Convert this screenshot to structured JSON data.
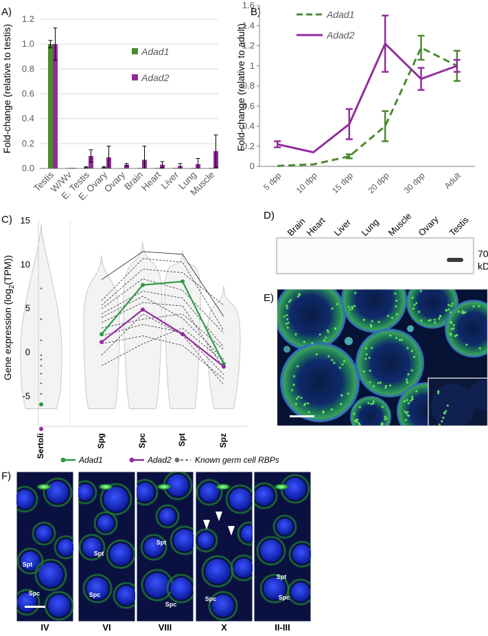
{
  "figure": {
    "panels": {
      "a": "A)",
      "b": "B)",
      "c": "C)",
      "d": "D)",
      "e": "E)",
      "f": "F)"
    }
  },
  "colors": {
    "adad1": "#4a8a2e",
    "adad2": "#922b9c",
    "adad1_violin": "#2e9a46",
    "axis": "#7f7f7f",
    "tick_text": "#595959",
    "rbp": "#707070"
  },
  "chart_data": [
    {
      "id": "A",
      "type": "bar",
      "title": "",
      "ylabel": "Fold-change (relative to testis)",
      "ylim": [
        0,
        1.2
      ],
      "yticks": [
        "0.0",
        "0.2",
        "0.4",
        "0.6",
        "0.8",
        "1.0",
        "1.2"
      ],
      "categories": [
        "Testis",
        "W/Wv",
        "E. Testis",
        "E. Ovary",
        "Ovary",
        "Brain",
        "Heart",
        "Liver",
        "Lung",
        "Muscle"
      ],
      "series": [
        {
          "name": "Adad1",
          "values": [
            1.0,
            0.005,
            0.01,
            0.01,
            0.0,
            0.005,
            0.005,
            0.005,
            0.005,
            0.005
          ],
          "errors": [
            0.03,
            0.0,
            0.005,
            0.005,
            0.0,
            0.0,
            0.0,
            0.0,
            0.0,
            0.0
          ]
        },
        {
          "name": "Adad2",
          "values": [
            1.0,
            0.005,
            0.1,
            0.09,
            0.03,
            0.07,
            0.03,
            0.02,
            0.035,
            0.14
          ],
          "errors": [
            0.13,
            0.0,
            0.05,
            0.09,
            0.01,
            0.11,
            0.025,
            0.02,
            0.045,
            0.13
          ]
        }
      ]
    },
    {
      "id": "B",
      "type": "line",
      "ylabel": "Fold-change (relative to adult)",
      "ylim": [
        0,
        1.6
      ],
      "yticks": [
        "0",
        "0.2",
        "0.4",
        "0.6",
        "0.8",
        "1",
        "1.2",
        "1.4",
        "1.6"
      ],
      "categories": [
        "5 dpp",
        "10 dpp",
        "15 dpp",
        "20 dpp",
        "30 dpp",
        "Adult"
      ],
      "series": [
        {
          "name": "Adad1",
          "style": "dashed",
          "values": [
            0.005,
            0.02,
            0.1,
            0.4,
            1.18,
            1.0
          ],
          "errors": [
            0.0,
            0.0,
            0.02,
            0.15,
            0.12,
            0.15
          ]
        },
        {
          "name": "Adad2",
          "style": "solid",
          "values": [
            0.22,
            0.14,
            0.42,
            1.22,
            0.87,
            1.0
          ],
          "errors": [
            0.03,
            0.0,
            0.15,
            0.28,
            0.11,
            0.06
          ]
        }
      ]
    },
    {
      "id": "C",
      "type": "scatter",
      "ylabel_main": "Gene expression (log",
      "ylabel_sub": "2",
      "ylabel_tail": "(TPM))",
      "ylim": [
        -8.5,
        15
      ],
      "yticks": [
        "-5",
        "0",
        "5",
        "10",
        "15"
      ],
      "categories": [
        "Sertoli",
        "Spg",
        "Spc",
        "Spt",
        "Spz"
      ],
      "series": [
        {
          "name": "Adad1",
          "values": [
            -6.0,
            2.0,
            7.6,
            8.0,
            -1.4
          ]
        },
        {
          "name": "Adad2",
          "values": [
            -8.8,
            1.1,
            4.8,
            2.0,
            -1.7
          ]
        }
      ],
      "rbp_lines": [
        [
          8.2,
          11.4,
          11.1,
          4.0
        ],
        [
          5.8,
          10.6,
          10.2,
          2.4
        ],
        [
          5.3,
          9.4,
          9.0,
          5.3
        ],
        [
          4.9,
          8.3,
          7.0,
          2.1
        ],
        [
          4.3,
          6.9,
          6.1,
          0.5
        ],
        [
          3.9,
          6.3,
          3.8,
          -0.9
        ],
        [
          3.3,
          5.6,
          5.2,
          -1.9
        ],
        [
          2.7,
          3.7,
          4.3,
          0.2
        ],
        [
          1.8,
          3.1,
          2.2,
          -2.6
        ],
        [
          0.9,
          1.8,
          0.7,
          -3.1
        ],
        [
          -0.4,
          4.3,
          1.9,
          -3.8
        ],
        [
          -1.6,
          0.9,
          2.7,
          -1.1
        ]
      ],
      "sertoli_points": [
        7.2,
        3.7,
        1.3,
        -0.4,
        -0.9,
        -1.6,
        -2.5,
        -3.6,
        -4.8
      ],
      "legend": [
        "Adad1",
        "Adad2",
        "Known germ cell RBPs"
      ]
    }
  ],
  "western": {
    "lanes": [
      "Brain",
      "Heart",
      "Liver",
      "Lung",
      "Muscle",
      "Ovary",
      "Testis"
    ],
    "marker_value": "70",
    "marker_unit": "kDa"
  },
  "stages": {
    "panels": [
      {
        "stage": "IV",
        "labels": [
          {
            "text": "Spt"
          },
          {
            "text": "Spc"
          }
        ]
      },
      {
        "stage": "VI",
        "labels": [
          {
            "text": "Spt"
          },
          {
            "text": "Spc"
          }
        ]
      },
      {
        "stage": "VIII",
        "labels": [
          {
            "text": "Spt"
          },
          {
            "text": "Spc"
          }
        ]
      },
      {
        "stage": "X",
        "labels": [
          {
            "text": "Spc"
          }
        ]
      },
      {
        "stage": "II-III",
        "labels": [
          {
            "text": "Spt"
          },
          {
            "text": "Spc"
          }
        ]
      }
    ]
  }
}
